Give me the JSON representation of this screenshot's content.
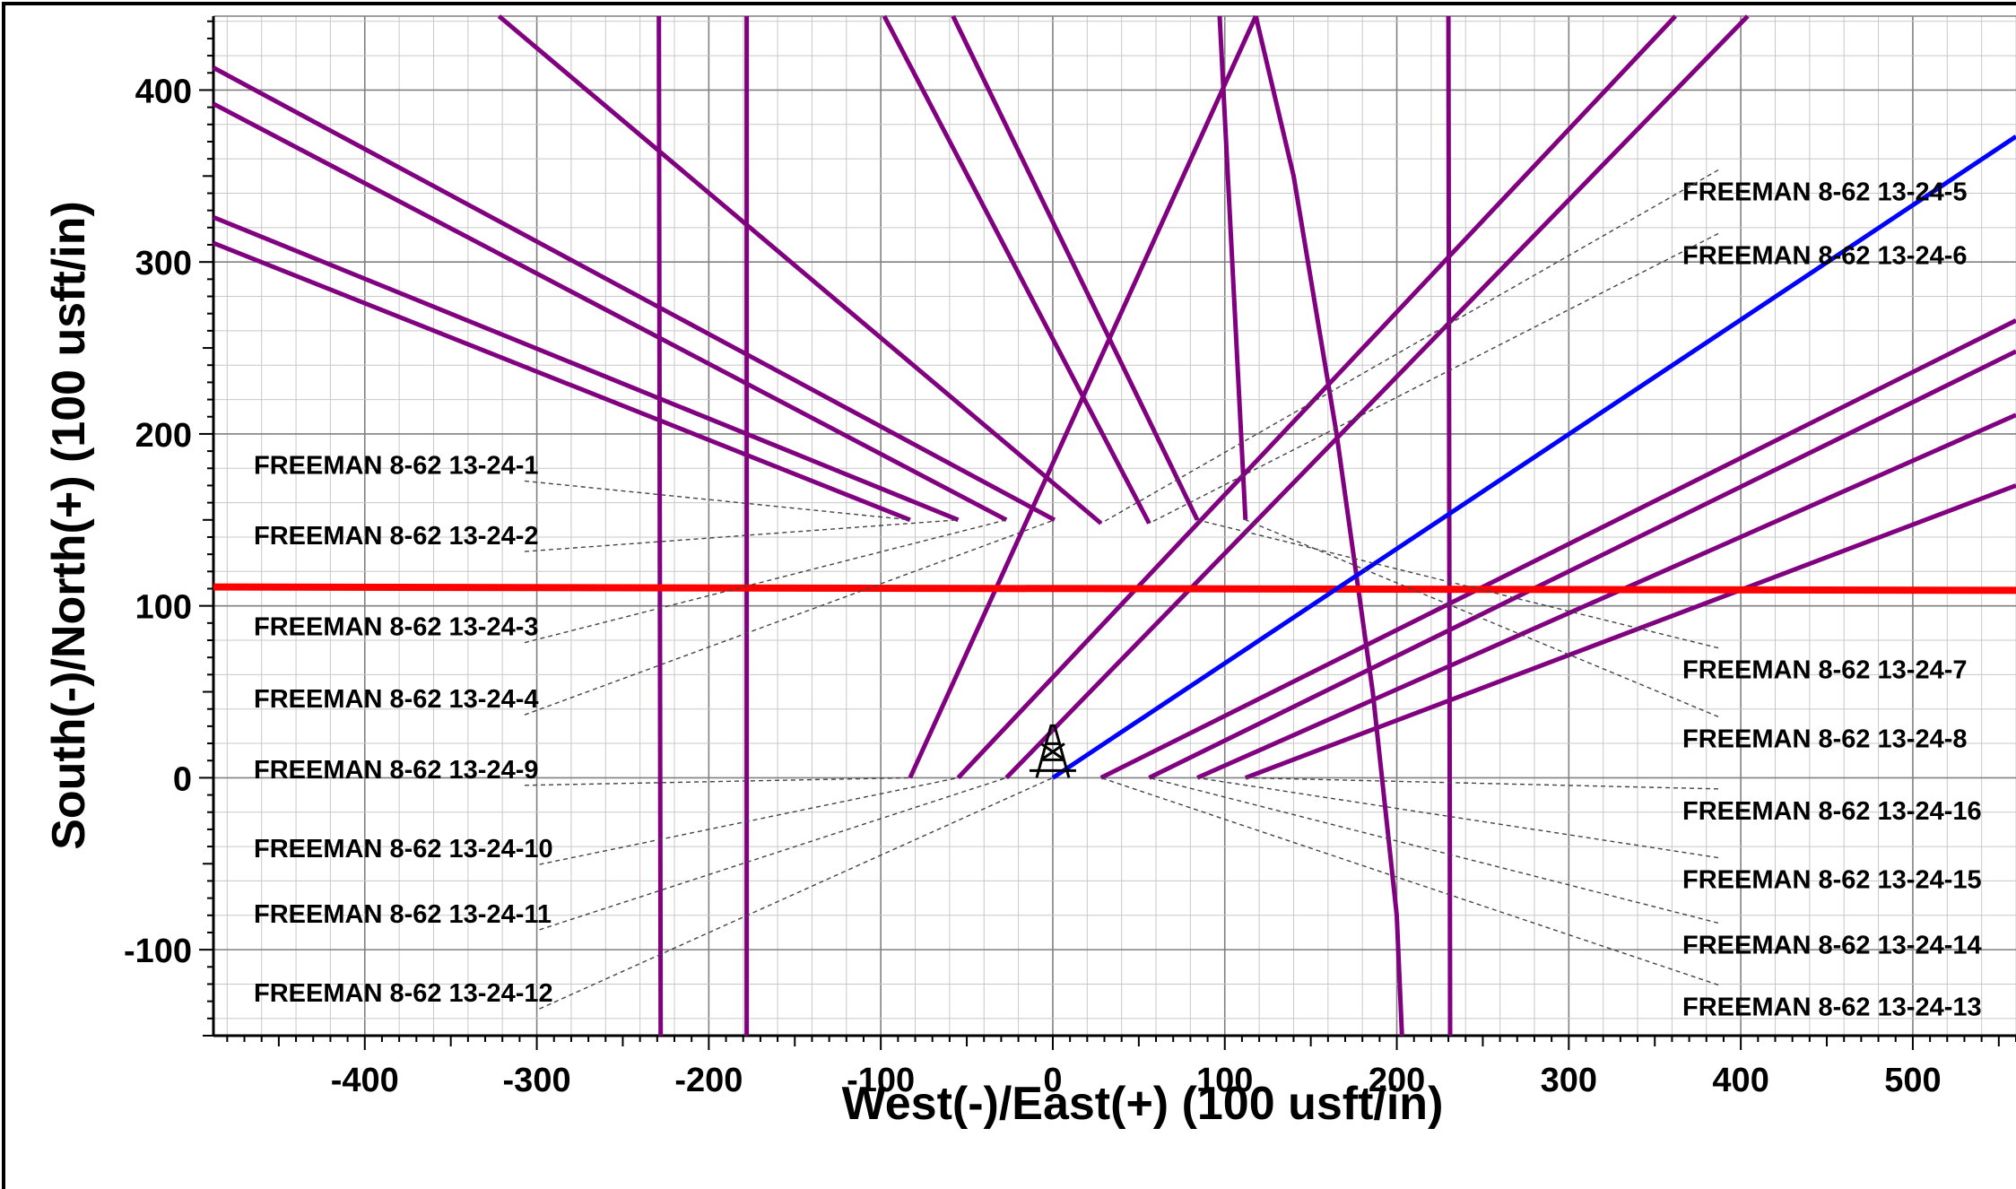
{
  "chart_data": {
    "type": "line",
    "xlabel": "West(-)/East(+) (100 usft/in)",
    "ylabel": "South(-)/North(+) (100 usft/in)",
    "xlim": [
      -488,
      560
    ],
    "ylim": [
      -150,
      443
    ],
    "x_ticks": [
      -400,
      -300,
      -200,
      -100,
      0,
      100,
      200,
      300,
      400,
      500
    ],
    "y_ticks": [
      -100,
      0,
      100,
      200,
      300,
      400
    ],
    "grid": true,
    "colors": {
      "well": "#800080",
      "current_well": "#0000ff",
      "boundary": "#ff0000",
      "grid_major": "#808080",
      "grid_minor": "#c8c8c8",
      "leader": "#444444"
    },
    "rig_icon": "drilling-rig-icon",
    "surface_location": [
      0,
      0
    ],
    "series": [
      {
        "name": "FREEMAN 8-62 13-24-1",
        "points": [
          [
            -83,
            150
          ],
          [
            -488,
            311
          ]
        ]
      },
      {
        "name": "FREEMAN 8-62 13-24-2",
        "points": [
          [
            -55,
            150
          ],
          [
            -488,
            326
          ]
        ]
      },
      {
        "name": "FREEMAN 8-62 13-24-3",
        "points": [
          [
            -27,
            150
          ],
          [
            -488,
            392
          ]
        ]
      },
      {
        "name": "FREEMAN 8-62 13-24-4",
        "points": [
          [
            1,
            150
          ],
          [
            -488,
            413
          ]
        ]
      },
      {
        "name": "",
        "points": [
          [
            28,
            148
          ],
          [
            -322,
            443
          ]
        ]
      },
      {
        "name": "",
        "points": [
          [
            56,
            148
          ],
          [
            -98,
            443
          ]
        ]
      },
      {
        "name": "",
        "points": [
          [
            84,
            150
          ],
          [
            -58,
            443
          ]
        ]
      },
      {
        "name": "",
        "points": [
          [
            112,
            150
          ],
          [
            97,
            443
          ]
        ]
      },
      {
        "name": "FREEMAN 8-62 13-24-9",
        "points": [
          [
            -83,
            0
          ],
          [
            118,
            443
          ]
        ]
      },
      {
        "name": "FREEMAN 8-62 13-24-10",
        "points": [
          [
            -55,
            0
          ],
          [
            362,
            443
          ]
        ]
      },
      {
        "name": "FREEMAN 8-62 13-24-11",
        "points": [
          [
            -27,
            0
          ],
          [
            404,
            443
          ]
        ]
      },
      {
        "name": "FREEMAN 8-62 13-24-13",
        "points": [
          [
            28,
            0
          ],
          [
            560,
            266
          ]
        ]
      },
      {
        "name": "FREEMAN 8-62 13-24-14",
        "points": [
          [
            56,
            0
          ],
          [
            560,
            248
          ]
        ]
      },
      {
        "name": "FREEMAN 8-62 13-24-15",
        "points": [
          [
            84,
            0
          ],
          [
            560,
            211
          ]
        ]
      },
      {
        "name": "FREEMAN 8-62 13-24-16",
        "points": [
          [
            112,
            0
          ],
          [
            560,
            170
          ]
        ]
      },
      {
        "name": "",
        "points": [
          [
            -228,
            -150
          ],
          [
            -229,
            443
          ]
        ]
      },
      {
        "name": "",
        "points": [
          [
            -178,
            -150
          ],
          [
            -178,
            443
          ]
        ]
      },
      {
        "name": "",
        "points": [
          [
            231,
            -150
          ],
          [
            230,
            443
          ]
        ]
      },
      {
        "name": "",
        "points": [
          [
            203,
            -150
          ],
          [
            200,
            -80
          ],
          [
            186,
            50
          ],
          [
            165,
            200
          ],
          [
            140,
            350
          ],
          [
            118,
            443
          ]
        ]
      }
    ],
    "current_well": {
      "name": "FREEMAN 8-62 13-24-12",
      "points": [
        [
          0,
          0
        ],
        [
          560,
          373
        ]
      ]
    },
    "boundary_line": {
      "name": "",
      "points": [
        [
          -488,
          111
        ],
        [
          560,
          109
        ]
      ]
    },
    "labels_left": [
      {
        "text": "FREEMAN 8-62 13-24-1",
        "y": 182,
        "target": [
          -83,
          150
        ]
      },
      {
        "text": "FREEMAN 8-62 13-24-2",
        "y": 141,
        "target": [
          -55,
          150
        ]
      },
      {
        "text": "FREEMAN 8-62 13-24-3",
        "y": 88,
        "target": [
          -27,
          150
        ]
      },
      {
        "text": "FREEMAN 8-62 13-24-4",
        "y": 46,
        "target": [
          1,
          150
        ]
      },
      {
        "text": "FREEMAN 8-62 13-24-9",
        "y": 5,
        "target": [
          -83,
          0
        ]
      },
      {
        "text": "FREEMAN 8-62 13-24-10",
        "y": -41,
        "target": [
          -55,
          0
        ]
      },
      {
        "text": "FREEMAN 8-62 13-24-11",
        "y": -79,
        "target": [
          -27,
          0
        ]
      },
      {
        "text": "FREEMAN 8-62 13-24-12",
        "y": -125,
        "target": [
          0,
          0
        ]
      }
    ],
    "labels_right": [
      {
        "text": "FREEMAN 8-62 13-24-5",
        "y": 341,
        "target": [
          28,
          148
        ]
      },
      {
        "text": "FREEMAN 8-62 13-24-6",
        "y": 304,
        "target": [
          56,
          148
        ]
      },
      {
        "text": "FREEMAN 8-62 13-24-7",
        "y": 63,
        "target": [
          84,
          150
        ]
      },
      {
        "text": "FREEMAN 8-62 13-24-8",
        "y": 23,
        "target": [
          112,
          150
        ]
      },
      {
        "text": "FREEMAN 8-62 13-24-16",
        "y": -19,
        "target": [
          112,
          0
        ]
      },
      {
        "text": "FREEMAN 8-62 13-24-15",
        "y": -59,
        "target": [
          84,
          0
        ]
      },
      {
        "text": "FREEMAN 8-62 13-24-14",
        "y": -97,
        "target": [
          56,
          0
        ]
      },
      {
        "text": "FREEMAN 8-62 13-24-13",
        "y": -133,
        "target": [
          28,
          0
        ]
      }
    ]
  }
}
